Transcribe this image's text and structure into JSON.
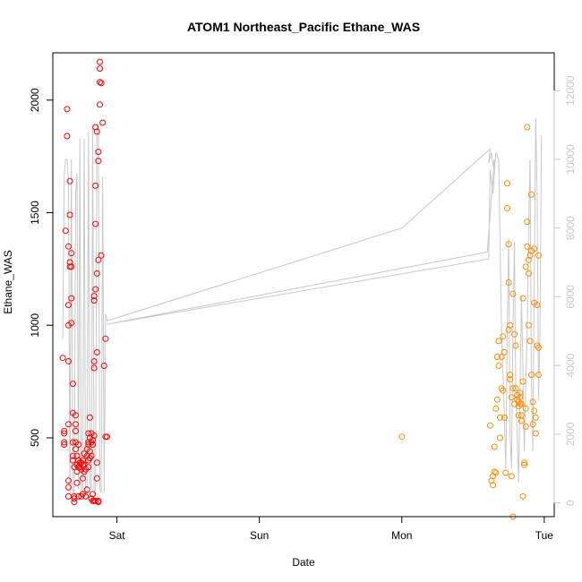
{
  "chart_data": {
    "type": "scatter",
    "title": "ATOM1 Northeast_Pacific Ethane_WAS",
    "xlabel": "Date",
    "ylabel": "Ethane_WAS",
    "x_ticks": [
      "Sat",
      "Sun",
      "Mon",
      "Tue"
    ],
    "y_ticks": [
      500,
      1000,
      1500,
      2000
    ],
    "ylim": [
      150,
      2210
    ],
    "y2_ticks": [
      0,
      2000,
      4000,
      6000,
      8000,
      10000,
      12000
    ],
    "y2lim": [
      -400,
      13100
    ],
    "xlim": [
      -0.45,
      3.07
    ],
    "colors": {
      "series1": "#ff0000",
      "series2": "#ff8c00",
      "line": "#c8c8c8",
      "axis": "#000000",
      "axis_right": "#c8c8c8"
    },
    "series": [
      {
        "color": "#ff0000",
        "points": [
          [
            -0.38,
            855
          ],
          [
            -0.37,
            520
          ],
          [
            -0.37,
            530
          ],
          [
            -0.37,
            480
          ],
          [
            -0.37,
            470
          ],
          [
            -0.36,
            1420
          ],
          [
            -0.35,
            1960
          ],
          [
            -0.35,
            1840
          ],
          [
            -0.34,
            1350
          ],
          [
            -0.34,
            1000
          ],
          [
            -0.34,
            1090
          ],
          [
            -0.34,
            840
          ],
          [
            -0.34,
            560
          ],
          [
            -0.34,
            310
          ],
          [
            -0.34,
            280
          ],
          [
            -0.34,
            240
          ],
          [
            -0.33,
            1490
          ],
          [
            -0.33,
            1640
          ],
          [
            -0.33,
            1280
          ],
          [
            -0.33,
            1260
          ],
          [
            -0.32,
            1320
          ],
          [
            -0.32,
            1260
          ],
          [
            -0.32,
            1120
          ],
          [
            -0.32,
            1010
          ],
          [
            -0.31,
            740
          ],
          [
            -0.31,
            610
          ],
          [
            -0.31,
            480
          ],
          [
            -0.31,
            420
          ],
          [
            -0.31,
            400
          ],
          [
            -0.3,
            370
          ],
          [
            -0.3,
            240
          ],
          [
            -0.3,
            230
          ],
          [
            -0.3,
            215
          ],
          [
            -0.29,
            600
          ],
          [
            -0.29,
            560
          ],
          [
            -0.29,
            530
          ],
          [
            -0.29,
            480
          ],
          [
            -0.29,
            450
          ],
          [
            -0.28,
            420
          ],
          [
            -0.28,
            380
          ],
          [
            -0.28,
            350
          ],
          [
            -0.28,
            300
          ],
          [
            -0.27,
            470
          ],
          [
            -0.27,
            400
          ],
          [
            -0.27,
            370
          ],
          [
            -0.27,
            240
          ],
          [
            -0.26,
            390
          ],
          [
            -0.26,
            370
          ],
          [
            -0.25,
            390
          ],
          [
            -0.25,
            360
          ],
          [
            -0.25,
            240
          ],
          [
            -0.24,
            400
          ],
          [
            -0.24,
            380
          ],
          [
            -0.24,
            320
          ],
          [
            -0.24,
            250
          ],
          [
            -0.23,
            430
          ],
          [
            -0.23,
            380
          ],
          [
            -0.23,
            350
          ],
          [
            -0.22,
            360
          ],
          [
            -0.22,
            240
          ],
          [
            -0.21,
            450
          ],
          [
            -0.21,
            420
          ],
          [
            -0.21,
            270
          ],
          [
            -0.2,
            520
          ],
          [
            -0.2,
            480
          ],
          [
            -0.2,
            470
          ],
          [
            -0.2,
            400
          ],
          [
            -0.2,
            370
          ],
          [
            -0.19,
            590
          ],
          [
            -0.19,
            500
          ],
          [
            -0.19,
            440
          ],
          [
            -0.19,
            410
          ],
          [
            -0.18,
            520
          ],
          [
            -0.18,
            480
          ],
          [
            -0.18,
            420
          ],
          [
            -0.18,
            230
          ],
          [
            -0.17,
            490
          ],
          [
            -0.17,
            470
          ],
          [
            -0.17,
            250
          ],
          [
            -0.17,
            220
          ],
          [
            -0.16,
            1130
          ],
          [
            -0.16,
            1110
          ],
          [
            -0.16,
            840
          ],
          [
            -0.16,
            810
          ],
          [
            -0.16,
            510
          ],
          [
            -0.16,
            220
          ],
          [
            -0.15,
            1620
          ],
          [
            -0.15,
            1450
          ],
          [
            -0.15,
            1160
          ],
          [
            -0.15,
            1880
          ],
          [
            -0.15,
            220
          ],
          [
            -0.14,
            1860
          ],
          [
            -0.14,
            1230
          ],
          [
            -0.14,
            880
          ],
          [
            -0.14,
            390
          ],
          [
            -0.14,
            320
          ],
          [
            -0.13,
            1770
          ],
          [
            -0.13,
            1730
          ],
          [
            -0.13,
            1290
          ],
          [
            -0.13,
            215
          ],
          [
            -0.13,
            220
          ],
          [
            -0.12,
            2170
          ],
          [
            -0.12,
            2140
          ],
          [
            -0.12,
            2080
          ],
          [
            -0.12,
            1980
          ],
          [
            -0.11,
            2075
          ],
          [
            -0.11,
            1310
          ],
          [
            -0.1,
            1900
          ],
          [
            -0.09,
            820
          ],
          [
            -0.08,
            940
          ],
          [
            -0.08,
            505
          ],
          [
            -0.07,
            505
          ]
        ]
      },
      {
        "color": "#ff8c00",
        "points": [
          [
            2.0,
            505
          ],
          [
            2.62,
            555
          ],
          [
            2.63,
            310
          ],
          [
            2.64,
            290
          ],
          [
            2.64,
            330
          ],
          [
            2.65,
            350
          ],
          [
            2.65,
            460
          ],
          [
            2.66,
            345
          ],
          [
            2.66,
            630
          ],
          [
            2.67,
            860
          ],
          [
            2.67,
            670
          ],
          [
            2.68,
            820
          ],
          [
            2.68,
            930
          ],
          [
            2.69,
            590
          ],
          [
            2.69,
            500
          ],
          [
            2.7,
            860
          ],
          [
            2.7,
            720
          ],
          [
            2.71,
            950
          ],
          [
            2.71,
            710
          ],
          [
            2.72,
            880
          ],
          [
            2.72,
            590
          ],
          [
            2.73,
            345
          ],
          [
            2.74,
            1630
          ],
          [
            2.74,
            1520
          ],
          [
            2.75,
            1360
          ],
          [
            2.75,
            1190
          ],
          [
            2.75,
            980
          ],
          [
            2.76,
            1000
          ],
          [
            2.76,
            780
          ],
          [
            2.76,
            760
          ],
          [
            2.77,
            680
          ],
          [
            2.77,
            330
          ],
          [
            2.78,
            1140
          ],
          [
            2.78,
            720
          ],
          [
            2.79,
            960
          ],
          [
            2.79,
            650
          ],
          [
            2.8,
            910
          ],
          [
            2.8,
            720
          ],
          [
            2.81,
            690
          ],
          [
            2.81,
            670
          ],
          [
            2.82,
            660
          ],
          [
            2.82,
            640
          ],
          [
            2.82,
            600
          ],
          [
            2.83,
            680
          ],
          [
            2.83,
            700
          ],
          [
            2.83,
            650
          ],
          [
            2.84,
            650
          ],
          [
            2.84,
            600
          ],
          [
            2.84,
            575
          ],
          [
            2.85,
            1120
          ],
          [
            2.85,
            750
          ],
          [
            2.85,
            240
          ],
          [
            2.86,
            390
          ],
          [
            2.86,
            380
          ],
          [
            2.87,
            630
          ],
          [
            2.87,
            550
          ],
          [
            2.87,
            1260
          ],
          [
            2.88,
            1350
          ],
          [
            2.88,
            1460
          ],
          [
            2.88,
            1880
          ],
          [
            2.89,
            1230
          ],
          [
            2.89,
            1000
          ],
          [
            2.89,
            1290
          ],
          [
            2.9,
            1310
          ],
          [
            2.9,
            930
          ],
          [
            2.91,
            1330
          ],
          [
            2.91,
            780
          ],
          [
            2.91,
            1580
          ],
          [
            2.92,
            660
          ],
          [
            2.92,
            560
          ],
          [
            2.93,
            620
          ],
          [
            2.93,
            1100
          ],
          [
            2.93,
            1340
          ],
          [
            2.94,
            590
          ],
          [
            2.94,
            520
          ],
          [
            2.95,
            1090
          ],
          [
            2.95,
            910
          ],
          [
            2.96,
            1310
          ],
          [
            2.96,
            900
          ],
          [
            2.96,
            780
          ],
          [
            2.78,
            150
          ]
        ]
      }
    ],
    "line_series": {
      "color": "#c8c8c8",
      "points": [
        [
          -0.38,
          4800
        ],
        [
          -0.37,
          9500
        ],
        [
          -0.36,
          10000
        ],
        [
          -0.35,
          10000
        ],
        [
          -0.34,
          9400
        ],
        [
          -0.33,
          300
        ],
        [
          -0.32,
          10000
        ],
        [
          -0.31,
          400
        ],
        [
          -0.3,
          200
        ],
        [
          -0.29,
          9000
        ],
        [
          -0.28,
          9600
        ],
        [
          -0.27,
          400
        ],
        [
          -0.26,
          10600
        ],
        [
          -0.25,
          200
        ],
        [
          -0.24,
          300
        ],
        [
          -0.23,
          10600
        ],
        [
          -0.22,
          300
        ],
        [
          -0.21,
          200
        ],
        [
          -0.2,
          10800
        ],
        [
          -0.19,
          600
        ],
        [
          -0.18,
          400
        ],
        [
          -0.17,
          11000
        ],
        [
          -0.16,
          300
        ],
        [
          -0.15,
          200
        ],
        [
          -0.14,
          11000
        ],
        [
          -0.13,
          10800
        ],
        [
          -0.12,
          400
        ],
        [
          -0.11,
          300
        ],
        [
          -0.1,
          9500
        ],
        [
          -0.09,
          300
        ],
        [
          -0.08,
          5500
        ],
        [
          -0.07,
          5300
        ],
        [
          2.0,
          8000
        ],
        [
          2.62,
          10300
        ],
        [
          2.61,
          9900
        ],
        [
          2.63,
          10200
        ],
        [
          2.64,
          9800
        ],
        [
          2.65,
          10000
        ],
        [
          2.6,
          7300
        ],
        [
          -0.07,
          5200
        ],
        [
          2.61,
          7100
        ],
        [
          2.62,
          9700
        ],
        [
          2.64,
          9000
        ],
        [
          2.66,
          10200
        ],
        [
          2.68,
          10000
        ],
        [
          2.7,
          5000
        ],
        [
          2.72,
          2500
        ],
        [
          2.73,
          1000
        ],
        [
          2.74,
          5000
        ],
        [
          2.75,
          7700
        ],
        [
          2.76,
          2000
        ],
        [
          2.77,
          1000
        ],
        [
          2.78,
          5000
        ],
        [
          2.79,
          7600
        ],
        [
          2.8,
          3500
        ],
        [
          2.81,
          2000
        ],
        [
          2.82,
          600
        ],
        [
          2.83,
          3300
        ],
        [
          2.84,
          6000
        ],
        [
          2.85,
          4000
        ],
        [
          2.86,
          1500
        ],
        [
          2.87,
          3500
        ],
        [
          2.88,
          5000
        ],
        [
          2.89,
          8000
        ],
        [
          2.9,
          10000
        ],
        [
          2.91,
          3700
        ],
        [
          2.92,
          1500
        ],
        [
          2.93,
          6500
        ],
        [
          2.94,
          11200
        ],
        [
          2.95,
          9000
        ],
        [
          2.96,
          3000
        ],
        [
          2.97,
          5000
        ],
        [
          2.98,
          10700
        ]
      ]
    }
  }
}
